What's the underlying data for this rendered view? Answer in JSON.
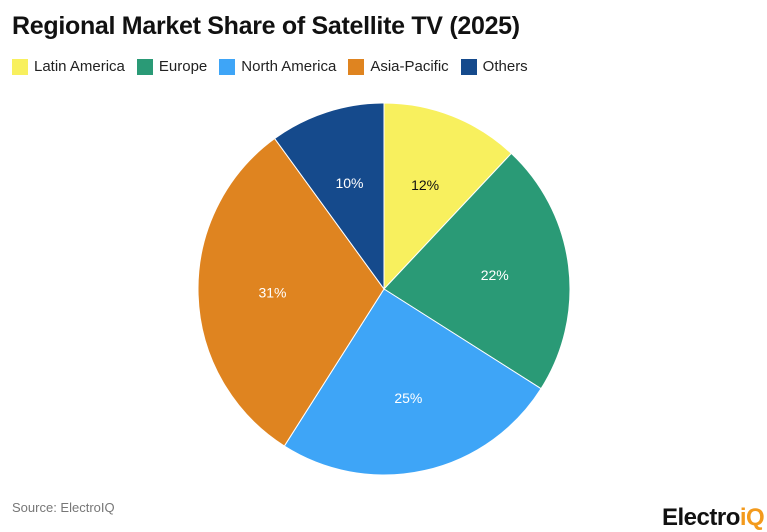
{
  "chart_data": {
    "type": "pie",
    "title": "Regional Market Share of Satellite TV (2025)",
    "categories": [
      "Latin America",
      "Europe",
      "North America",
      "Asia-Pacific",
      "Others"
    ],
    "values": [
      12,
      22,
      25,
      31,
      10
    ],
    "labels": [
      "12%",
      "22%",
      "25%",
      "31%",
      "10%"
    ],
    "colors": [
      "#F8F05E",
      "#2A9A76",
      "#3EA5F7",
      "#DF8420",
      "#154A8C"
    ],
    "label_colors": [
      "#111111",
      "#ffffff",
      "#ffffff",
      "#ffffff",
      "#ffffff"
    ],
    "legend": "top-left",
    "start": "top, clockwise"
  },
  "source": "Source: ElectroIQ",
  "logo": {
    "main": "Electro",
    "accent": "iQ"
  }
}
